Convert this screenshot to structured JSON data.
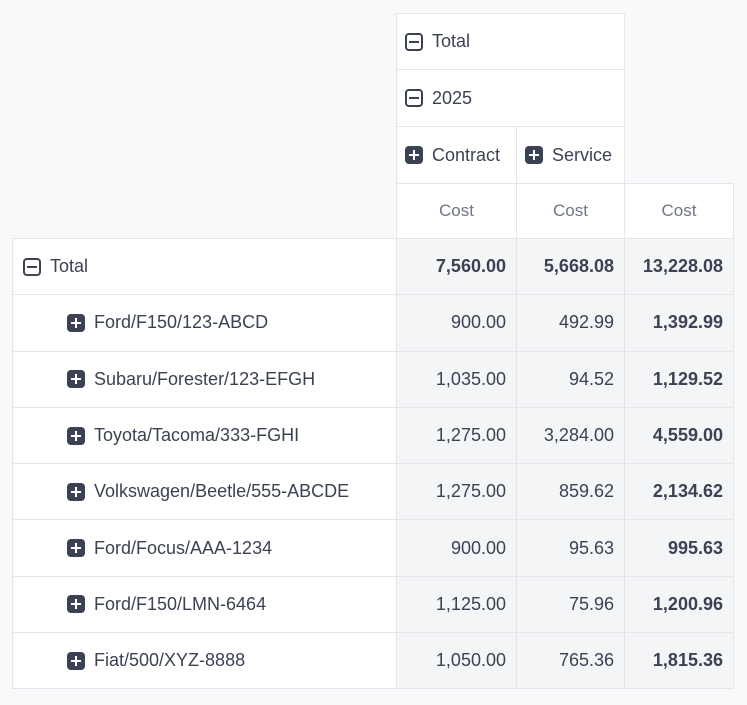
{
  "colors": {
    "page_background": "#f8f9fa",
    "cell_border": "#e4e6ea",
    "header_cell_background": "#ffffff",
    "value_cell_background": "#f4f5f7",
    "text_dark": "#3b4253",
    "text_muted": "#6f7585",
    "icon_dark": "#3b4253"
  },
  "pivot": {
    "column_headers": {
      "total": {
        "label": "Total",
        "icon": "minus-square-icon",
        "state": "expanded"
      },
      "year": {
        "label": "2025",
        "icon": "minus-square-icon",
        "state": "expanded"
      },
      "groups": [
        {
          "label": "Contract",
          "icon": "plus-square-icon",
          "state": "collapsed"
        },
        {
          "label": "Service",
          "icon": "plus-square-icon",
          "state": "collapsed"
        }
      ],
      "measures": [
        "Cost",
        "Cost",
        "Cost"
      ]
    },
    "rows": [
      {
        "label": "Total",
        "icon": "minus-square-icon",
        "state": "expanded",
        "depth": 0,
        "total_row": true,
        "values": [
          "7,560.00",
          "5,668.08",
          "13,228.08"
        ]
      },
      {
        "label": "Ford/F150/123-ABCD",
        "icon": "plus-square-icon",
        "state": "collapsed",
        "depth": 1,
        "total_row": false,
        "values": [
          "900.00",
          "492.99",
          "1,392.99"
        ]
      },
      {
        "label": "Subaru/Forester/123-EFGH",
        "icon": "plus-square-icon",
        "state": "collapsed",
        "depth": 1,
        "total_row": false,
        "values": [
          "1,035.00",
          "94.52",
          "1,129.52"
        ]
      },
      {
        "label": "Toyota/Tacoma/333-FGHI",
        "icon": "plus-square-icon",
        "state": "collapsed",
        "depth": 1,
        "total_row": false,
        "values": [
          "1,275.00",
          "3,284.00",
          "4,559.00"
        ]
      },
      {
        "label": "Volkswagen/Beetle/555-ABCDE",
        "icon": "plus-square-icon",
        "state": "collapsed",
        "depth": 1,
        "total_row": false,
        "values": [
          "1,275.00",
          "859.62",
          "2,134.62"
        ]
      },
      {
        "label": "Ford/Focus/AAA-1234",
        "icon": "plus-square-icon",
        "state": "collapsed",
        "depth": 1,
        "total_row": false,
        "values": [
          "900.00",
          "95.63",
          "995.63"
        ]
      },
      {
        "label": "Ford/F150/LMN-6464",
        "icon": "plus-square-icon",
        "state": "collapsed",
        "depth": 1,
        "total_row": false,
        "values": [
          "1,125.00",
          "75.96",
          "1,200.96"
        ]
      },
      {
        "label": "Fiat/500/XYZ-8888",
        "icon": "plus-square-icon",
        "state": "collapsed",
        "depth": 1,
        "total_row": false,
        "values": [
          "1,050.00",
          "765.36",
          "1,815.36"
        ]
      }
    ]
  }
}
